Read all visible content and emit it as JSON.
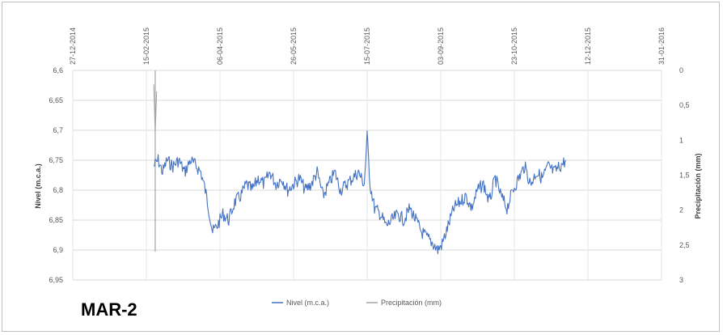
{
  "chart_data": {
    "type": "line",
    "station_label": "MAR-2",
    "left_axis": {
      "title": "Nivel (m.c.a.)",
      "reversed": true,
      "range": [
        6.6,
        6.95
      ],
      "ticks": [
        "6,6",
        "6,65",
        "6,7",
        "6,75",
        "6,8",
        "6,85",
        "6,9",
        "6,95"
      ]
    },
    "right_axis": {
      "title": "Precipitación (mm)",
      "reversed": true,
      "range": [
        0,
        3
      ],
      "ticks": [
        "0",
        "0,5",
        "1",
        "1,5",
        "2",
        "2,5",
        "3"
      ]
    },
    "x_axis": {
      "position": "top",
      "range": [
        "2014-12-27",
        "2016-01-31"
      ],
      "ticks": [
        "27-12-2014",
        "15-02-2015",
        "06-04-2015",
        "26-05-2015",
        "15-07-2015",
        "03-09-2015",
        "23-10-2015",
        "12-12-2015",
        "31-01-2016"
      ]
    },
    "grid": true,
    "legend_position": "bottom",
    "series": [
      {
        "name": "Nivel (m.c.a.)",
        "axis": "left",
        "color": "#4472c4",
        "points": [
          [
            "2015-02-20",
            6.76
          ],
          [
            "2015-02-23",
            6.75
          ],
          [
            "2015-02-26",
            6.77
          ],
          [
            "2015-03-01",
            6.75
          ],
          [
            "2015-03-05",
            6.76
          ],
          [
            "2015-03-09",
            6.75
          ],
          [
            "2015-03-13",
            6.77
          ],
          [
            "2015-03-17",
            6.75
          ],
          [
            "2015-03-21",
            6.76
          ],
          [
            "2015-03-24",
            6.77
          ],
          [
            "2015-03-27",
            6.8
          ],
          [
            "2015-03-30",
            6.84
          ],
          [
            "2015-04-01",
            6.87
          ],
          [
            "2015-04-04",
            6.86
          ],
          [
            "2015-04-08",
            6.84
          ],
          [
            "2015-04-12",
            6.85
          ],
          [
            "2015-04-16",
            6.82
          ],
          [
            "2015-04-20",
            6.81
          ],
          [
            "2015-04-24",
            6.79
          ],
          [
            "2015-04-28",
            6.8
          ],
          [
            "2015-05-02",
            6.78
          ],
          [
            "2015-05-06",
            6.79
          ],
          [
            "2015-05-10",
            6.77
          ],
          [
            "2015-05-14",
            6.79
          ],
          [
            "2015-05-18",
            6.78
          ],
          [
            "2015-05-22",
            6.8
          ],
          [
            "2015-05-26",
            6.79
          ],
          [
            "2015-05-30",
            6.78
          ],
          [
            "2015-06-03",
            6.8
          ],
          [
            "2015-06-07",
            6.79
          ],
          [
            "2015-06-11",
            6.77
          ],
          [
            "2015-06-15",
            6.81
          ],
          [
            "2015-06-19",
            6.79
          ],
          [
            "2015-06-23",
            6.77
          ],
          [
            "2015-06-27",
            6.8
          ],
          [
            "2015-07-01",
            6.79
          ],
          [
            "2015-07-05",
            6.78
          ],
          [
            "2015-07-09",
            6.77
          ],
          [
            "2015-07-13",
            6.79
          ],
          [
            "2015-07-15",
            6.71
          ],
          [
            "2015-07-17",
            6.79
          ],
          [
            "2015-07-20",
            6.83
          ],
          [
            "2015-07-24",
            6.84
          ],
          [
            "2015-07-28",
            6.86
          ],
          [
            "2015-08-01",
            6.85
          ],
          [
            "2015-08-05",
            6.84
          ],
          [
            "2015-08-09",
            6.85
          ],
          [
            "2015-08-13",
            6.83
          ],
          [
            "2015-08-17",
            6.85
          ],
          [
            "2015-08-21",
            6.87
          ],
          [
            "2015-08-25",
            6.88
          ],
          [
            "2015-08-29",
            6.89
          ],
          [
            "2015-09-01",
            6.9
          ],
          [
            "2015-09-04",
            6.89
          ],
          [
            "2015-09-08",
            6.86
          ],
          [
            "2015-09-12",
            6.83
          ],
          [
            "2015-09-16",
            6.82
          ],
          [
            "2015-09-20",
            6.81
          ],
          [
            "2015-09-24",
            6.83
          ],
          [
            "2015-09-28",
            6.8
          ],
          [
            "2015-10-02",
            6.79
          ],
          [
            "2015-10-06",
            6.82
          ],
          [
            "2015-10-10",
            6.78
          ],
          [
            "2015-10-14",
            6.81
          ],
          [
            "2015-10-18",
            6.83
          ],
          [
            "2015-10-22",
            6.8
          ],
          [
            "2015-10-26",
            6.78
          ],
          [
            "2015-10-30",
            6.76
          ],
          [
            "2015-11-03",
            6.79
          ],
          [
            "2015-11-07",
            6.77
          ],
          [
            "2015-11-11",
            6.78
          ],
          [
            "2015-11-15",
            6.76
          ],
          [
            "2015-11-19",
            6.77
          ],
          [
            "2015-11-23",
            6.76
          ],
          [
            "2015-11-27",
            6.75
          ]
        ]
      },
      {
        "name": "Precipitación (mm)",
        "axis": "right",
        "color": "#a5a5a5",
        "points": [
          [
            "2015-02-20",
            0.2
          ],
          [
            "2015-02-21",
            0.9
          ],
          [
            "2015-02-22",
            0.3
          ]
        ]
      }
    ]
  }
}
